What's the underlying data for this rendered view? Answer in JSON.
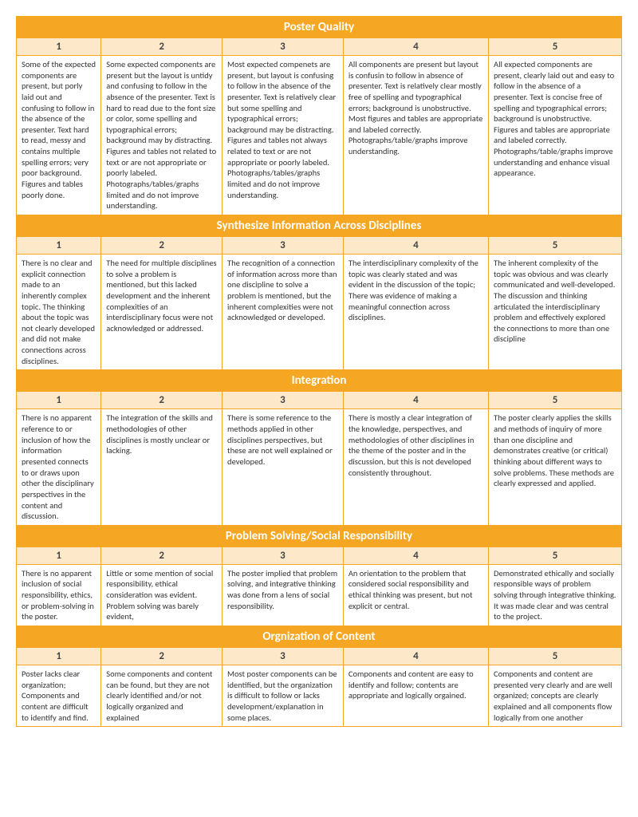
{
  "scores": [
    "1",
    "2",
    "3",
    "4",
    "5"
  ],
  "sections": [
    {
      "title": "Poster Quality",
      "cells": [
        "Some of the expected components are present, but porly laid out and confusing to follow in the absence of the presenter. Text hard to read, messy and contains multiple spelling errors; very poor background. Figures and tables poorly done.",
        "Some expected components are present but the layout is untidy and confusing to follow in the absence of the presenter. Text is hard to read due to the font size or color, some spelling and typographical errors; background may by distracting. Figures and tables not related to text or are not appropriate or poorly labeled. Photographs/tables/graphs limited and do not improve understanding.",
        "Most expected compenets are present, but layout is confusing to follow in the absence of the presenter. Text is relatively clear but some spelling and typographical errors; background may be distracting. Figures and tables not always related to text or are not appropriate or poorly labeled. Photographs/tables/graphs limited and do not improve understanding.",
        "All components are present but layout is confusin to follow in absence of presenter. Text is relatively clear mostly free of spelling and typographical errors; background is unobstructive. Most figures and tables are appropriate and labeled correctly. Photographs/table/graphs improve understanding.",
        "All expected components are present, clearly laid out and easy to follow in the absence of a presenter. Text is concise free of spelling and typographical errors; background is unobstructive. Figures and tables are appropriate and labeled correctly. Photographs/table/graphs improve understanding and enhance visual appearance."
      ]
    },
    {
      "title": "Synthesize Information Across Disciplines",
      "cells": [
        "There is no clear and explicit connection made to an inherently complex topic. The thinking about the topic was not clearly developed and did not make connections across disciplines.",
        "The need for multiple disciplines to solve a problem is mentioned, but this lacked development and the inherent complexities of an interdisciplinary focus were not acknowledged or addressed.",
        "The recognition of a connection of information across more than one discipline to solve a problem is mentioned, but the inherent complexities were not acknowledged or developed.",
        "The interdisciplinary complexity of the topic was clearly stated and was evident in the discussion of the topic; There was evidence of making a meaningful connection across disciplines.",
        "The inherent complexity of the topic was obvious and was clearly communicated and well-developed. The discussion and thinking articulated the interdisciplinary problem and effectively explored the connections to more than one discipline"
      ]
    },
    {
      "title": "Integration",
      "cells": [
        "There is no apparent reference to or inclusion of how the information presented connects to or draws upon other the disciplinary perspectives in the content and discussion.",
        "The integration of the skills and methodologies of other disciplines is mostly unclear or lacking.",
        "There is some reference to the methods applied in other disciplines perspectives, but these are not well explained or developed.",
        "There is mostly a clear integration of the knowledge, perspectives, and methodologies of other disciplines in the theme of the poster and in the discussion, but this is not developed consistently throughout.",
        "The poster clearly applies the skills and methods of inquiry of more than one discipline and demonstrates creative (or critical) thinking about different ways to solve problems. These methods are clearly expressed and applied."
      ]
    },
    {
      "title": "Problem Solving/Social Responsibility",
      "cells": [
        "There is no apparent inclusion of social responsibility, ethics, or problem-solving in the poster.",
        "Little or some mention of social responsibility, ethical consideration was evident. Problem solving was barely evident,",
        "The poster implied that problem solving, and integrative thinking was done from a lens of social responsibility.",
        "An orientation to the problem that considered social responsibility and ethical thinking was present, but not explicit or central.",
        "Demonstrated ethically and socially responsible ways of problem solving through integrative thinking. It was made clear and was central to the project."
      ]
    },
    {
      "title": "Orgnization of Content",
      "cells": [
        "Poster lacks clear organization; Components and content are difficult to identify and find.",
        "Some components and content can be found, but they are not clearly identified and/or not logically organized and explained",
        "Most poster components can be identified, but the organization is difficult to follow or lacks development/explanation in some places.",
        "Components and content are easy to identify and follow; contents are appropriate and logically orgained.",
        "Components and content are presented very clearly and are well organized; concepts are clearly explained and all components flow logically from one another"
      ]
    }
  ]
}
